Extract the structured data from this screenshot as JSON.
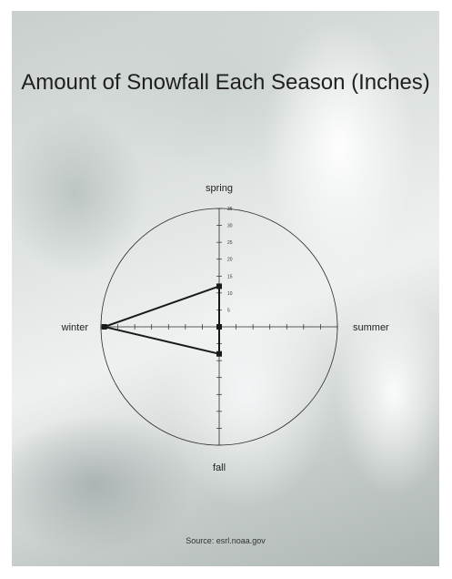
{
  "chart_data": {
    "type": "radar",
    "title": "Amount of Snowfall Each Season (Inches)",
    "source": "Source: esrl.noaa.gov",
    "axes": [
      "spring",
      "summer",
      "fall",
      "winter"
    ],
    "values": {
      "spring": 12,
      "summer": 0,
      "fall": 8,
      "winter": 34
    },
    "rlim": [
      0,
      35
    ],
    "tick_labels": [
      "5",
      "10",
      "15",
      "20",
      "25",
      "30",
      "35"
    ],
    "series_color": "#1a1a1a",
    "grid": false
  }
}
